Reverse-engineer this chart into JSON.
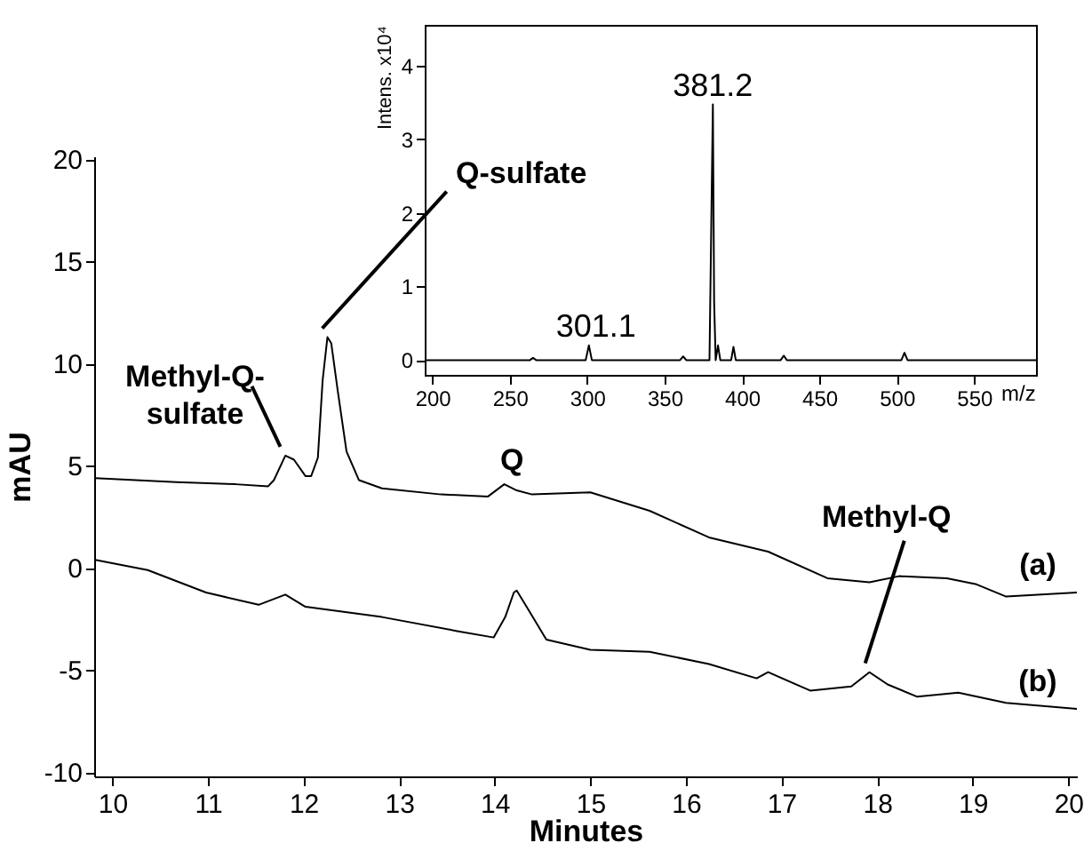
{
  "chart_data": [
    {
      "type": "line",
      "xlabel": "Minutes",
      "ylabel": "mAU",
      "xlim": [
        9.81,
        20.09
      ],
      "ylim": [
        -10.2,
        20.15
      ],
      "xticks": [
        10,
        11,
        12,
        13,
        14,
        15,
        16,
        17,
        18,
        19,
        20
      ],
      "yticks": [
        -10,
        -5,
        0,
        5,
        10,
        15,
        20
      ],
      "series": [
        {
          "name": "(a)",
          "color": "#000000",
          "x": [
            9.82,
            10.67,
            11.29,
            11.63,
            11.69,
            11.81,
            11.9,
            12.02,
            12.08,
            12.15,
            12.2,
            12.25,
            12.29,
            12.36,
            12.45,
            12.58,
            12.82,
            13.44,
            13.93,
            14.1,
            14.23,
            14.39,
            15.0,
            15.62,
            16.24,
            16.86,
            17.48,
            17.92,
            18.23,
            18.73,
            19.04,
            19.35,
            20.09
          ],
          "values": [
            4.4,
            4.2,
            4.1,
            4.0,
            4.3,
            5.5,
            5.3,
            4.5,
            4.5,
            5.4,
            9.2,
            11.3,
            11.0,
            8.6,
            5.7,
            4.3,
            3.9,
            3.6,
            3.5,
            4.1,
            3.8,
            3.6,
            3.7,
            2.8,
            1.5,
            0.8,
            -0.5,
            -0.7,
            -0.4,
            -0.5,
            -0.8,
            -1.4,
            -1.2
          ]
        },
        {
          "name": "(b)",
          "color": "#000000",
          "x": [
            9.82,
            10.37,
            10.98,
            11.53,
            11.81,
            12.02,
            12.82,
            13.62,
            13.99,
            14.11,
            14.2,
            14.23,
            14.36,
            14.54,
            15.0,
            15.62,
            16.24,
            16.74,
            16.86,
            17.3,
            17.73,
            17.92,
            18.11,
            18.42,
            18.85,
            19.35,
            20.09
          ],
          "values": [
            0.4,
            -0.1,
            -1.2,
            -1.8,
            -1.3,
            -1.9,
            -2.4,
            -3.1,
            -3.4,
            -2.4,
            -1.2,
            -1.1,
            -2.1,
            -3.5,
            -4.0,
            -4.1,
            -4.7,
            -5.4,
            -5.1,
            -6.0,
            -5.8,
            -5.1,
            -5.7,
            -6.3,
            -6.1,
            -6.6,
            -6.9
          ]
        }
      ],
      "annotations": [
        {
          "text": "Methyl-Q-\nsulfate",
          "x": 11.85,
          "y": 5.5
        },
        {
          "text": "Q-sulfate",
          "x": 12.27,
          "y": 11.3
        },
        {
          "text": "Q",
          "x": 14.2,
          "y": 4.1
        },
        {
          "text": "Methyl-Q",
          "x": 17.95,
          "y": -5.1
        }
      ]
    },
    {
      "type": "line",
      "xlabel": "m/z",
      "ylabel": "Intens. x10⁴",
      "xlim": [
        195,
        590
      ],
      "ylim": [
        -0.2,
        4.55
      ],
      "xticks": [
        200,
        250,
        300,
        350,
        400,
        450,
        500,
        550
      ],
      "yticks": [
        0,
        1,
        2,
        3,
        4
      ],
      "series": [
        {
          "color": "#000000",
          "x": [
            195,
            263,
            265,
            267,
            299,
            301.1,
            303,
            360,
            362,
            364,
            379,
            381.2,
            382,
            383,
            384.5,
            386,
            393,
            394.5,
            396,
            425,
            427,
            429,
            503,
            505,
            507,
            590
          ],
          "values": [
            0,
            0,
            0.03,
            0,
            0,
            0.2,
            0,
            0,
            0.05,
            0,
            0,
            3.47,
            0.8,
            0,
            0.2,
            0,
            0,
            0.18,
            0,
            0,
            0.06,
            0,
            0,
            0.1,
            0,
            0
          ]
        }
      ],
      "annotations": [
        {
          "text": "381.2",
          "x": 381.2,
          "y": 3.47
        },
        {
          "text": "301.1",
          "x": 301.1,
          "y": 0.2
        }
      ]
    }
  ]
}
